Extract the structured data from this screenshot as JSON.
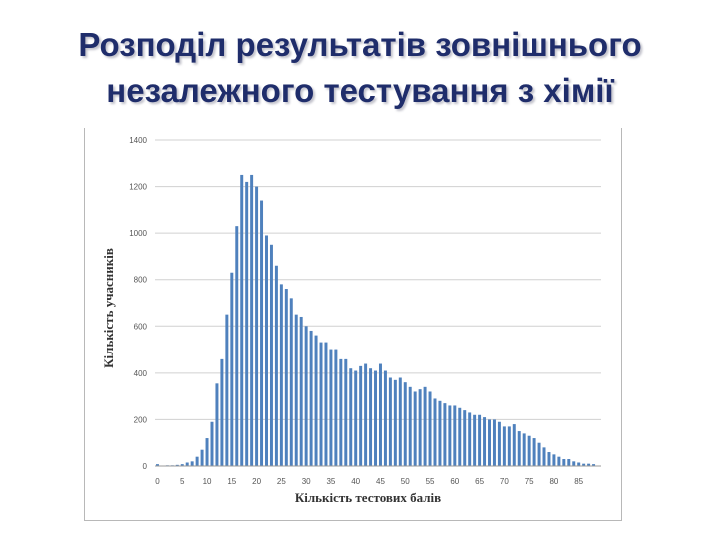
{
  "slide": {
    "title_line1": "Розподіл результатів зовнішнього",
    "title_line2": "незалежного тестування з хімії"
  },
  "chart_data": {
    "type": "bar",
    "xlabel": "Кількість тестових балів",
    "ylabel": "Кількість учасників",
    "ylim": [
      0,
      1400
    ],
    "xlim": [
      0,
      89
    ],
    "y_ticks": [
      0,
      200,
      400,
      600,
      800,
      1000,
      1200,
      1400
    ],
    "x_ticks": [
      0,
      5,
      10,
      15,
      20,
      25,
      30,
      35,
      40,
      45,
      50,
      55,
      60,
      65,
      70,
      75,
      80,
      85
    ],
    "grid": "horizontal",
    "bar_color": "#4f81bd",
    "x": [
      0,
      1,
      2,
      3,
      4,
      5,
      6,
      7,
      8,
      9,
      10,
      11,
      12,
      13,
      14,
      15,
      16,
      17,
      18,
      19,
      20,
      21,
      22,
      23,
      24,
      25,
      26,
      27,
      28,
      29,
      30,
      31,
      32,
      33,
      34,
      35,
      36,
      37,
      38,
      39,
      40,
      41,
      42,
      43,
      44,
      45,
      46,
      47,
      48,
      49,
      50,
      51,
      52,
      53,
      54,
      55,
      56,
      57,
      58,
      59,
      60,
      61,
      62,
      63,
      64,
      65,
      66,
      67,
      68,
      69,
      70,
      71,
      72,
      73,
      74,
      75,
      76,
      77,
      78,
      79,
      80,
      81,
      82,
      83,
      84,
      85,
      86,
      87,
      88
    ],
    "values": [
      8,
      2,
      3,
      3,
      5,
      8,
      15,
      20,
      40,
      70,
      120,
      190,
      355,
      460,
      650,
      830,
      1030,
      1250,
      1220,
      1250,
      1200,
      1140,
      990,
      950,
      860,
      780,
      760,
      720,
      650,
      640,
      600,
      580,
      560,
      530,
      530,
      500,
      500,
      460,
      460,
      420,
      410,
      430,
      440,
      420,
      410,
      440,
      410,
      380,
      370,
      380,
      360,
      340,
      320,
      330,
      340,
      320,
      290,
      280,
      270,
      260,
      260,
      250,
      240,
      230,
      220,
      220,
      210,
      200,
      200,
      190,
      170,
      170,
      180,
      150,
      140,
      130,
      120,
      100,
      80,
      60,
      50,
      40,
      30,
      30,
      20,
      15,
      10,
      10,
      8
    ]
  }
}
